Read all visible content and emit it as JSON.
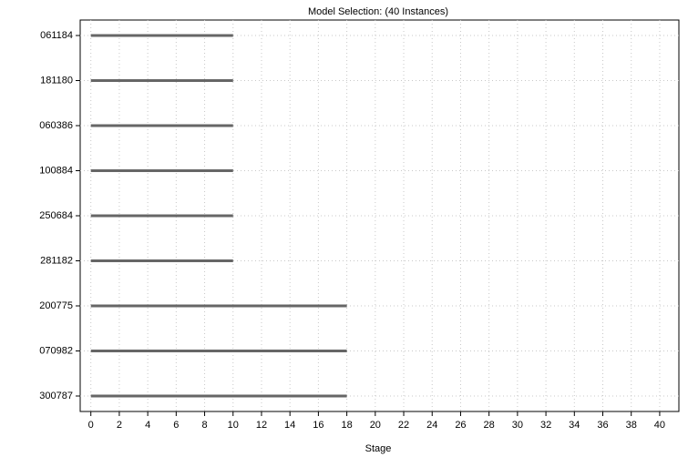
{
  "chart_data": {
    "type": "bar",
    "orientation": "horizontal",
    "title": "Model Selection:  (40 Instances)",
    "x_label": "Stage",
    "categories": [
      "061184",
      "181180",
      "060386",
      "100884",
      "250684",
      "281182",
      "200775",
      "070982",
      "300787"
    ],
    "values": [
      10,
      10,
      10,
      10,
      10,
      10,
      18,
      18,
      18
    ],
    "color": "#666666",
    "xlim": [
      -0.75,
      41.35
    ],
    "xticks": [
      0,
      2,
      4,
      6,
      8,
      10,
      12,
      14,
      16,
      18,
      20,
      22,
      24,
      26,
      28,
      30,
      32,
      34,
      36,
      38,
      40
    ],
    "grid": true
  }
}
